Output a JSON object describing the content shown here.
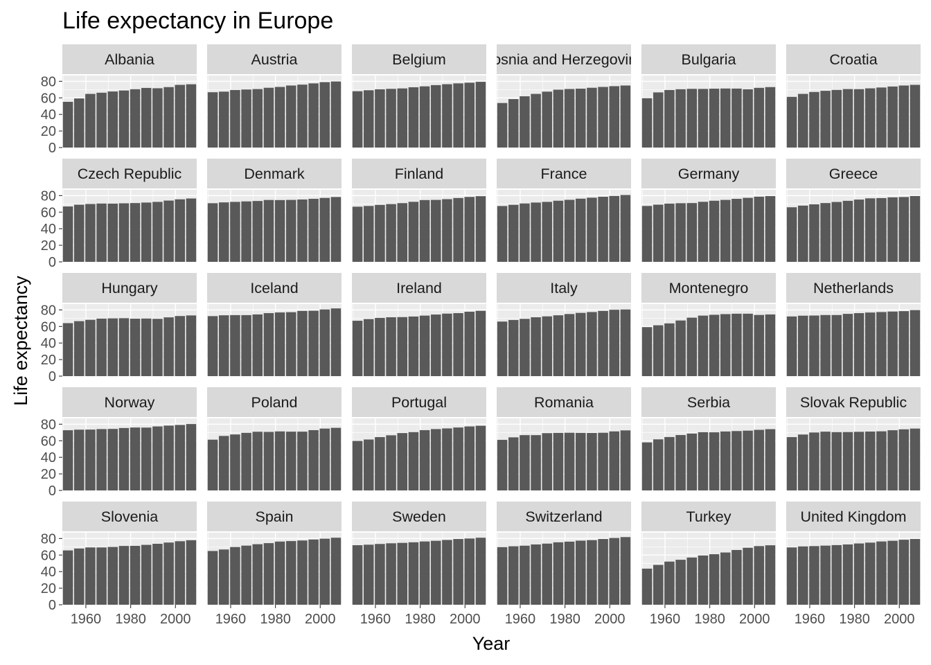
{
  "chart_data": {
    "type": "bar",
    "title": "Life expectancy in Europe",
    "xlabel": "Year",
    "ylabel": "Life expectancy",
    "facet_by": "country",
    "facet_layout": {
      "rows": 5,
      "cols": 6
    },
    "x": [
      1952,
      1957,
      1962,
      1967,
      1972,
      1977,
      1982,
      1987,
      1992,
      1997,
      2002,
      2007
    ],
    "x_ticks": [
      1960,
      1980,
      2000
    ],
    "y_ticks": [
      0,
      20,
      40,
      60,
      80
    ],
    "ylim": [
      0,
      87
    ],
    "xlim": [
      1949.5,
      2009.5
    ],
    "bar_color": "#595959",
    "grid": true,
    "panels": [
      {
        "name": "Albania",
        "values": [
          55.2,
          59.3,
          64.8,
          66.2,
          67.7,
          68.9,
          70.4,
          72.0,
          71.6,
          73.0,
          75.7,
          76.4
        ]
      },
      {
        "name": "Austria",
        "values": [
          66.8,
          67.5,
          69.5,
          70.1,
          70.6,
          72.2,
          73.2,
          74.9,
          76.0,
          77.5,
          79.0,
          79.8
        ]
      },
      {
        "name": "Belgium",
        "values": [
          68.0,
          69.2,
          70.3,
          70.9,
          71.4,
          72.8,
          73.9,
          75.4,
          76.5,
          77.5,
          78.3,
          79.4
        ]
      },
      {
        "name": "Bosnia and Herzegovina",
        "values": [
          53.8,
          58.5,
          61.9,
          64.8,
          67.5,
          69.9,
          70.7,
          71.1,
          72.2,
          73.2,
          74.1,
          74.9
        ]
      },
      {
        "name": "Bulgaria",
        "values": [
          59.6,
          66.6,
          69.5,
          70.4,
          70.9,
          70.8,
          71.1,
          71.3,
          71.2,
          70.3,
          72.1,
          73.0
        ]
      },
      {
        "name": "Croatia",
        "values": [
          61.2,
          64.8,
          67.1,
          68.5,
          69.6,
          70.6,
          70.5,
          71.5,
          72.5,
          73.7,
          74.9,
          75.7
        ]
      },
      {
        "name": "Czech Republic",
        "values": [
          66.9,
          69.0,
          69.9,
          70.4,
          70.3,
          70.7,
          71.0,
          71.6,
          72.4,
          74.0,
          75.5,
          76.5
        ]
      },
      {
        "name": "Denmark",
        "values": [
          70.8,
          71.8,
          72.4,
          73.0,
          73.5,
          74.7,
          74.6,
          74.8,
          75.3,
          76.1,
          77.2,
          78.3
        ]
      },
      {
        "name": "Finland",
        "values": [
          66.6,
          67.5,
          68.8,
          69.8,
          70.9,
          72.5,
          74.6,
          74.8,
          75.7,
          77.1,
          78.4,
          79.3
        ]
      },
      {
        "name": "France",
        "values": [
          67.4,
          68.9,
          70.5,
          71.6,
          72.4,
          73.8,
          74.9,
          76.3,
          77.5,
          78.6,
          79.6,
          80.7
        ]
      },
      {
        "name": "Germany",
        "values": [
          67.5,
          69.1,
          70.3,
          70.8,
          71.0,
          72.5,
          73.8,
          74.8,
          76.1,
          77.3,
          78.7,
          79.4
        ]
      },
      {
        "name": "Greece",
        "values": [
          65.9,
          67.9,
          69.5,
          71.0,
          72.3,
          73.7,
          75.2,
          76.7,
          77.0,
          77.9,
          78.3,
          79.5
        ]
      },
      {
        "name": "Hungary",
        "values": [
          64.0,
          66.4,
          68.0,
          69.5,
          69.8,
          70.0,
          69.4,
          69.6,
          69.2,
          71.0,
          72.6,
          73.3
        ]
      },
      {
        "name": "Iceland",
        "values": [
          72.5,
          73.5,
          73.7,
          73.7,
          74.5,
          76.1,
          76.9,
          77.2,
          78.8,
          79.0,
          80.5,
          81.8
        ]
      },
      {
        "name": "Ireland",
        "values": [
          66.9,
          68.9,
          70.3,
          71.1,
          71.3,
          72.0,
          73.1,
          74.4,
          75.5,
          76.1,
          77.8,
          78.9
        ]
      },
      {
        "name": "Italy",
        "values": [
          65.9,
          67.8,
          69.2,
          71.1,
          72.2,
          73.5,
          75.0,
          76.4,
          77.4,
          78.8,
          80.2,
          80.5
        ]
      },
      {
        "name": "Montenegro",
        "values": [
          59.2,
          61.4,
          63.7,
          67.2,
          70.6,
          73.1,
          74.1,
          74.9,
          75.4,
          75.4,
          73.9,
          74.5
        ]
      },
      {
        "name": "Netherlands",
        "values": [
          72.1,
          73.0,
          73.2,
          73.8,
          73.8,
          75.2,
          76.1,
          76.8,
          77.4,
          78.0,
          78.5,
          79.8
        ]
      },
      {
        "name": "Norway",
        "values": [
          72.7,
          73.4,
          73.5,
          74.1,
          74.3,
          75.4,
          76.0,
          75.9,
          77.3,
          78.3,
          79.1,
          80.2
        ]
      },
      {
        "name": "Poland",
        "values": [
          61.3,
          65.8,
          67.6,
          69.6,
          70.9,
          70.7,
          71.3,
          71.0,
          71.0,
          72.8,
          74.7,
          75.6
        ]
      },
      {
        "name": "Portugal",
        "values": [
          59.8,
          61.5,
          64.4,
          66.6,
          69.3,
          70.4,
          72.8,
          74.1,
          74.9,
          76.0,
          77.3,
          78.1
        ]
      },
      {
        "name": "Romania",
        "values": [
          61.1,
          64.1,
          66.8,
          66.8,
          69.2,
          69.5,
          69.7,
          69.5,
          69.4,
          69.7,
          71.3,
          72.5
        ]
      },
      {
        "name": "Serbia",
        "values": [
          58.0,
          61.7,
          64.5,
          66.9,
          68.7,
          70.3,
          70.2,
          71.2,
          71.7,
          72.2,
          73.2,
          74.0
        ]
      },
      {
        "name": "Slovak Republic",
        "values": [
          64.4,
          67.5,
          70.0,
          71.0,
          70.4,
          70.5,
          70.8,
          71.1,
          71.4,
          72.7,
          73.8,
          74.7
        ]
      },
      {
        "name": "Slovenia",
        "values": [
          65.6,
          67.9,
          69.2,
          69.2,
          69.8,
          71.0,
          71.1,
          72.3,
          73.6,
          75.1,
          76.7,
          77.9
        ]
      },
      {
        "name": "Spain",
        "values": [
          64.9,
          66.7,
          69.7,
          71.4,
          73.1,
          74.4,
          76.3,
          76.9,
          77.6,
          78.8,
          79.8,
          80.9
        ]
      },
      {
        "name": "Sweden",
        "values": [
          71.9,
          72.5,
          73.4,
          74.2,
          74.7,
          75.4,
          76.4,
          77.2,
          78.2,
          79.4,
          80.0,
          80.9
        ]
      },
      {
        "name": "Switzerland",
        "values": [
          69.6,
          70.6,
          71.3,
          72.8,
          73.8,
          75.4,
          76.2,
          77.4,
          78.0,
          79.4,
          80.6,
          81.7
        ]
      },
      {
        "name": "Turkey",
        "values": [
          43.6,
          48.1,
          52.1,
          54.3,
          57.0,
          59.5,
          61.0,
          63.1,
          66.1,
          68.8,
          70.8,
          71.8
        ]
      },
      {
        "name": "United Kingdom",
        "values": [
          69.2,
          70.4,
          70.8,
          71.4,
          72.0,
          72.8,
          74.0,
          75.0,
          76.4,
          77.2,
          78.5,
          79.4
        ]
      }
    ]
  }
}
